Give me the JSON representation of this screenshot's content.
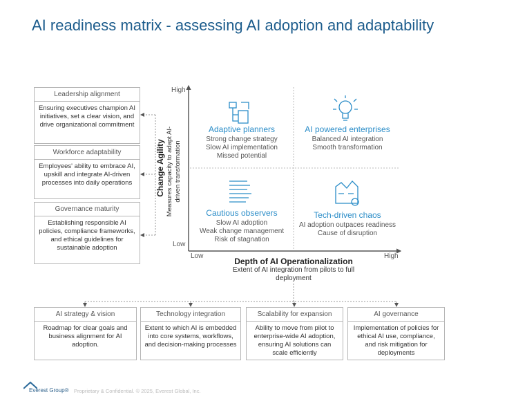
{
  "title": "AI readiness matrix - assessing AI adoption and adaptability",
  "left_boxes": [
    {
      "header": "Leadership alignment",
      "body": "Ensuring executives champion AI initiatives, set a clear vision, and drive organizational commitment"
    },
    {
      "header": "Workforce adaptability",
      "body": "Employees' ability to embrace AI, upskill and integrate AI-driven processes into daily operations"
    },
    {
      "header": "Governance maturity",
      "body": "Establishing responsible AI policies, compliance frameworks, and ethical guidelines for sustainable adoption"
    }
  ],
  "y_axis": {
    "title": "Change Agility",
    "subtitle": "Measures capacity to adapt AI-driven transformation",
    "high": "High",
    "low": "Low"
  },
  "x_axis": {
    "title": "Depth of AI Operationalization",
    "subtitle": "Extent of AI integration from pilots to full deployment",
    "low": "Low",
    "high": "High"
  },
  "quadrants": [
    {
      "title": "Adaptive planners",
      "lines": [
        "Strong change strategy",
        "Slow AI implementation",
        "Missed potential"
      ]
    },
    {
      "title": "AI powered enterprises",
      "lines": [
        "Balanced AI integration",
        "Smooth transformation"
      ]
    },
    {
      "title": "Cautious observers",
      "lines": [
        "Slow AI adoption",
        "Weak change management",
        "Risk of stagnation"
      ]
    },
    {
      "title": "Tech-driven chaos",
      "lines": [
        "AI adoption outpaces readiness",
        "Cause of disruption"
      ]
    }
  ],
  "bottom_boxes": [
    {
      "header": "AI strategy & vision",
      "body": "Roadmap for clear goals and business alignment for AI adoption."
    },
    {
      "header": "Technology integration",
      "body": "Extent to which AI is embedded into core systems, workflows, and decision-making processes"
    },
    {
      "header": "Scalability for expansion",
      "body": "Ability to move from pilot to enterprise-wide AI adoption, ensuring AI solutions can scale efficiently"
    },
    {
      "header": "AI governance",
      "body": "Implementation of policies for ethical AI use, compliance, and risk mitigation for deployments"
    }
  ],
  "footer": {
    "logo": "Everest Group®",
    "text": "Proprietary & Confidential. © 2025, Everest Global, Inc."
  }
}
